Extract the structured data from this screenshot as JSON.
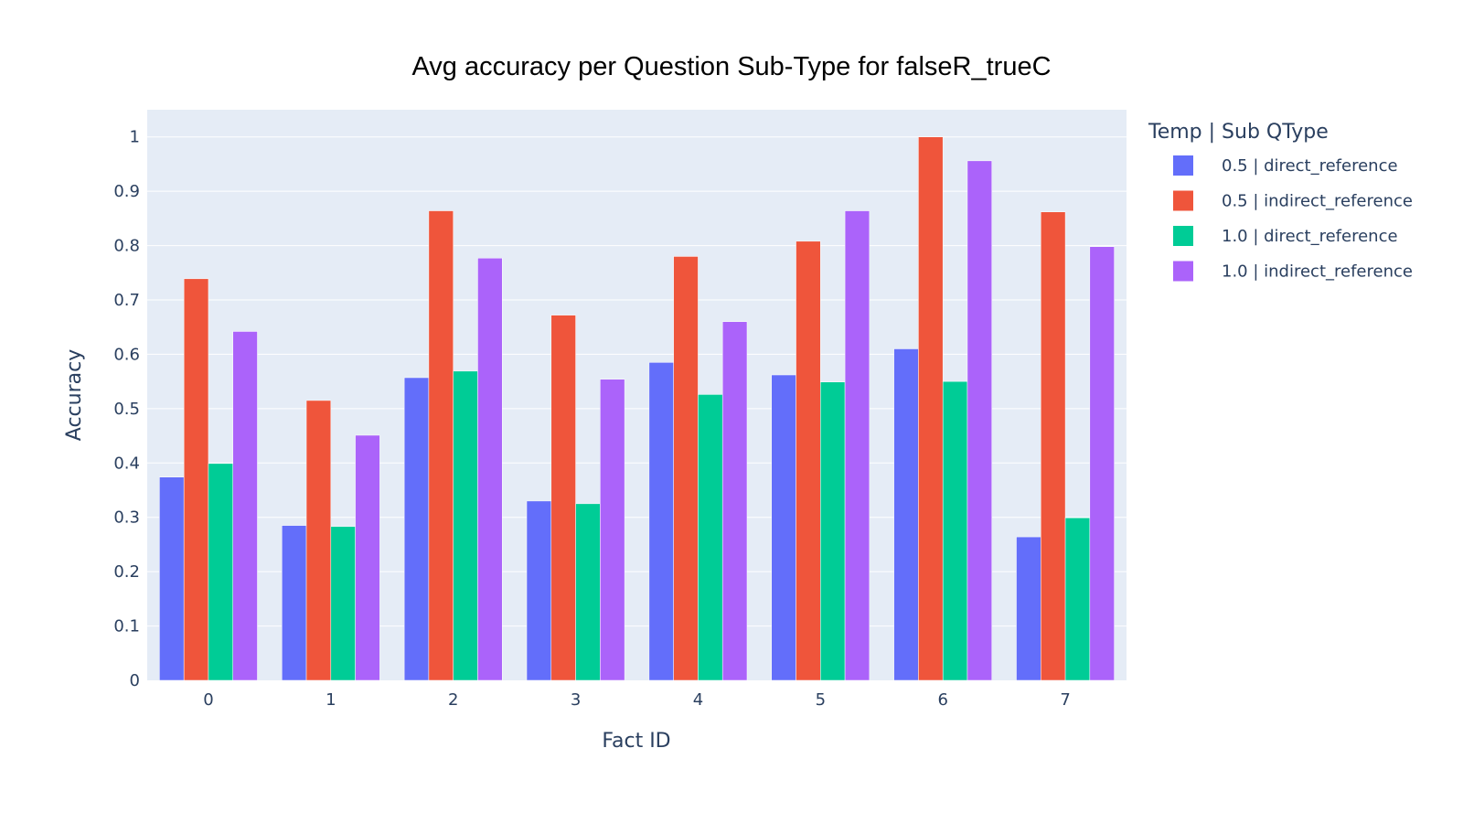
{
  "colors": {
    "plot_bg": "#e5ecf6",
    "grid": "#ffffff",
    "text": "#2a3f5f",
    "title": "#000000"
  },
  "chart_data": {
    "type": "bar",
    "title": "Avg accuracy per Question Sub-Type for falseR_trueC",
    "xlabel": "Fact ID",
    "ylabel": "Accuracy",
    "ylim": [
      0,
      1.05
    ],
    "yticks": [
      0,
      0.1,
      0.2,
      0.3,
      0.4,
      0.5,
      0.6,
      0.7,
      0.8,
      0.9,
      1
    ],
    "ytick_labels": [
      "0",
      "0.1",
      "0.2",
      "0.3",
      "0.4",
      "0.5",
      "0.6",
      "0.7",
      "0.8",
      "0.9",
      "1"
    ],
    "categories": [
      "0",
      "1",
      "2",
      "3",
      "4",
      "5",
      "6",
      "7"
    ],
    "grid": true,
    "legend_title": "Temp | Sub QType",
    "legend_position": "right",
    "series": [
      {
        "name": "0.5 | direct_reference",
        "color": "#636efa",
        "values": [
          0.374,
          0.285,
          0.557,
          0.33,
          0.585,
          0.562,
          0.61,
          0.264
        ]
      },
      {
        "name": "0.5 | indirect_reference",
        "color": "#ef553b",
        "values": [
          0.739,
          0.515,
          0.864,
          0.672,
          0.78,
          0.808,
          1.0,
          0.862
        ]
      },
      {
        "name": "1.0 | direct_reference",
        "color": "#00cc96",
        "values": [
          0.399,
          0.283,
          0.569,
          0.325,
          0.526,
          0.549,
          0.55,
          0.299
        ]
      },
      {
        "name": "1.0 | indirect_reference",
        "color": "#ab63fa",
        "values": [
          0.642,
          0.451,
          0.777,
          0.554,
          0.66,
          0.864,
          0.956,
          0.798
        ]
      }
    ]
  }
}
